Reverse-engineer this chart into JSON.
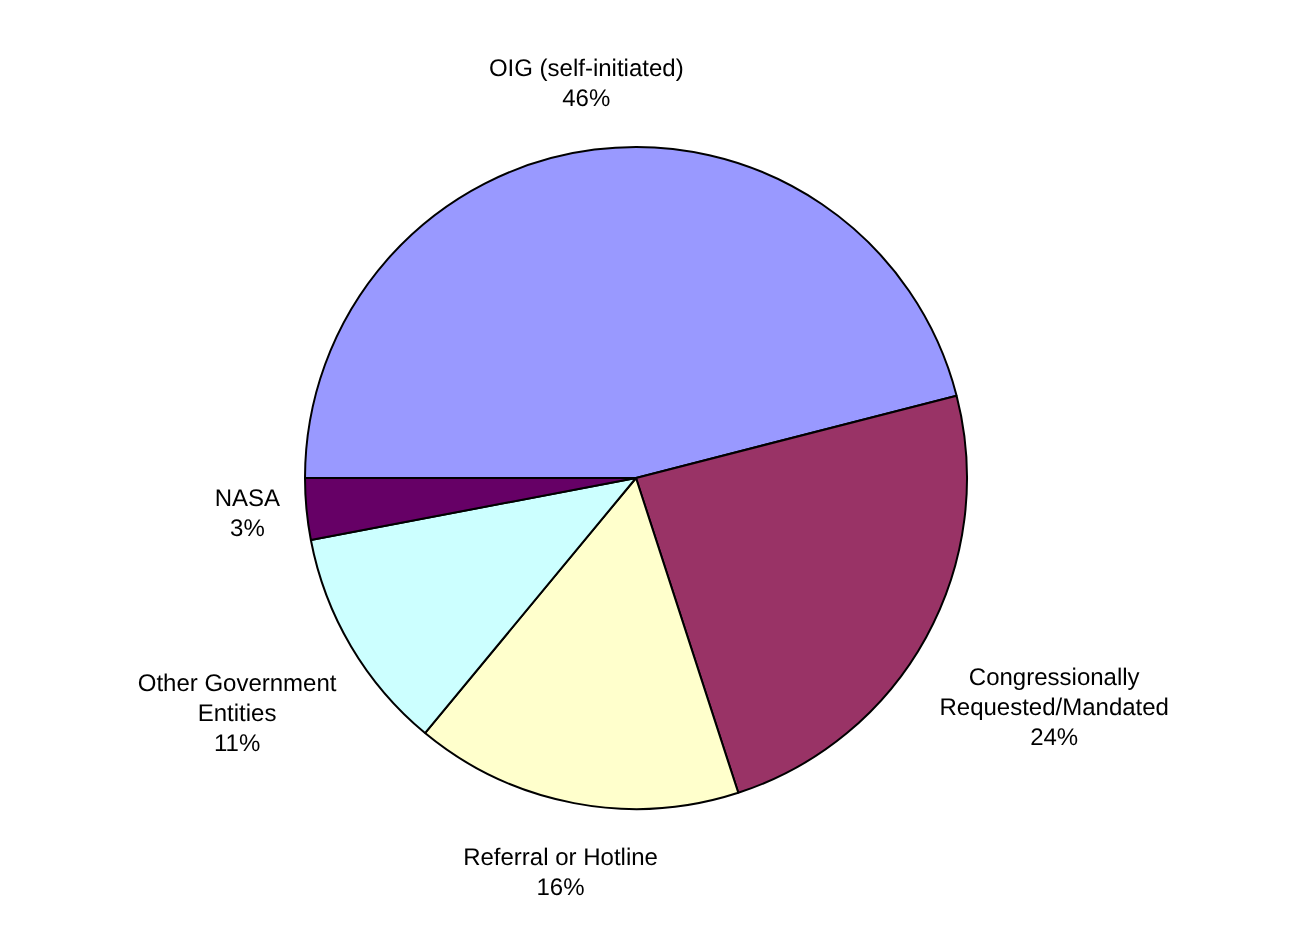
{
  "chart_data": {
    "type": "pie",
    "categories": [
      "OIG (self-initiated)",
      "Congressionally Requested/Mandated",
      "Referral or Hotline",
      "Other Government Entities",
      "NASA"
    ],
    "values": [
      46,
      24,
      16,
      11,
      3
    ],
    "value_labels": [
      "46%",
      "24%",
      "16%",
      "11%",
      "3%"
    ],
    "colors": [
      "#9999ff",
      "#993366",
      "#ffffcc",
      "#ccffff",
      "#660066"
    ],
    "legend": false
  }
}
